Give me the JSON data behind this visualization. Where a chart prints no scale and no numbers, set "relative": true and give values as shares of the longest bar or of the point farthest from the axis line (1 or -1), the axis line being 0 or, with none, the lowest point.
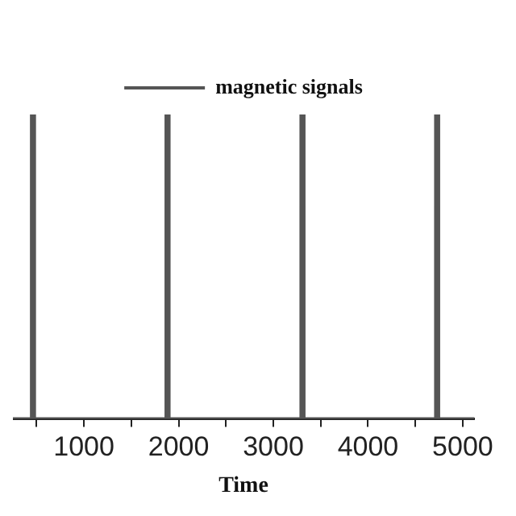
{
  "chart_data": {
    "type": "line",
    "relative": true,
    "xlabel": "Time",
    "legend": "top",
    "grid": false,
    "marker": "none",
    "line_style": "solid",
    "xlim": [
      250,
      5120
    ],
    "xticks": [
      {
        "value": 500,
        "label": null
      },
      1000,
      {
        "value": 1500,
        "label": null
      },
      2000,
      {
        "value": 2500,
        "label": null
      },
      3000,
      {
        "value": 3500,
        "label": null
      },
      4000,
      {
        "value": 4500,
        "label": null
      },
      5000
    ],
    "series": [
      {
        "name": "magnetic signals",
        "color": "#555555",
        "x": [
          250,
          447,
          447,
          477,
          477,
          1868,
          1868,
          1898,
          1898,
          3293,
          3293,
          3323,
          3323,
          4715,
          4715,
          4745,
          4745,
          5120
        ],
        "values": [
          0,
          0,
          1,
          1,
          0,
          0,
          1,
          1,
          0,
          0,
          1,
          1,
          0,
          0,
          1,
          1,
          0,
          0
        ]
      }
    ]
  }
}
